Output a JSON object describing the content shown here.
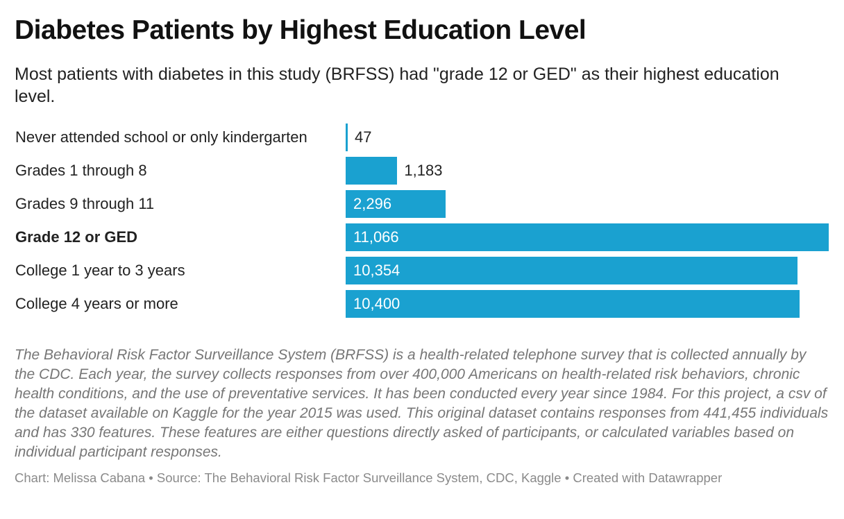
{
  "header": {
    "title": "Diabetes Patients by Highest Education Level",
    "subtitle": "Most patients with diabetes in this study (BRFSS) had \"grade 12 or GED\" as their highest education level."
  },
  "colors": {
    "bar": "#1aa1d0",
    "label_inside": "#ffffff",
    "label_outside": "#222222"
  },
  "chart_data": {
    "type": "bar",
    "orientation": "horizontal",
    "categories": [
      "Never attended school or only kindergarten",
      "Grades 1 through 8",
      "Grades 9 through 11",
      "Grade 12 or GED",
      "College 1 year to 3 years",
      "College 4 years or more"
    ],
    "values": [
      47,
      1183,
      2296,
      11066,
      10354,
      10400
    ],
    "value_labels": [
      "47",
      "1,183",
      "2,296",
      "11,066",
      "10,354",
      "10,400"
    ],
    "highlighted_category": "Grade 12 or GED",
    "xlim": [
      0,
      11066
    ],
    "grid": false
  },
  "notes": "The Behavioral Risk Factor Surveillance System (BRFSS) is a health-related telephone survey that is collected annually by the CDC. Each year, the survey collects responses from over 400,000 Americans on health-related risk behaviors, chronic health conditions, and the use of preventative services. It has been conducted every year since 1984. For this project, a csv of the dataset available on Kaggle for the year 2015 was used. This original dataset contains responses from 441,455 individuals and has 330 features. These features are either questions directly asked of participants, or calculated variables based on individual participant responses.",
  "footer": "Chart: Melissa Cabana • Source: The Behavioral Risk Factor Surveillance System, CDC, Kaggle • Created with Datawrapper"
}
